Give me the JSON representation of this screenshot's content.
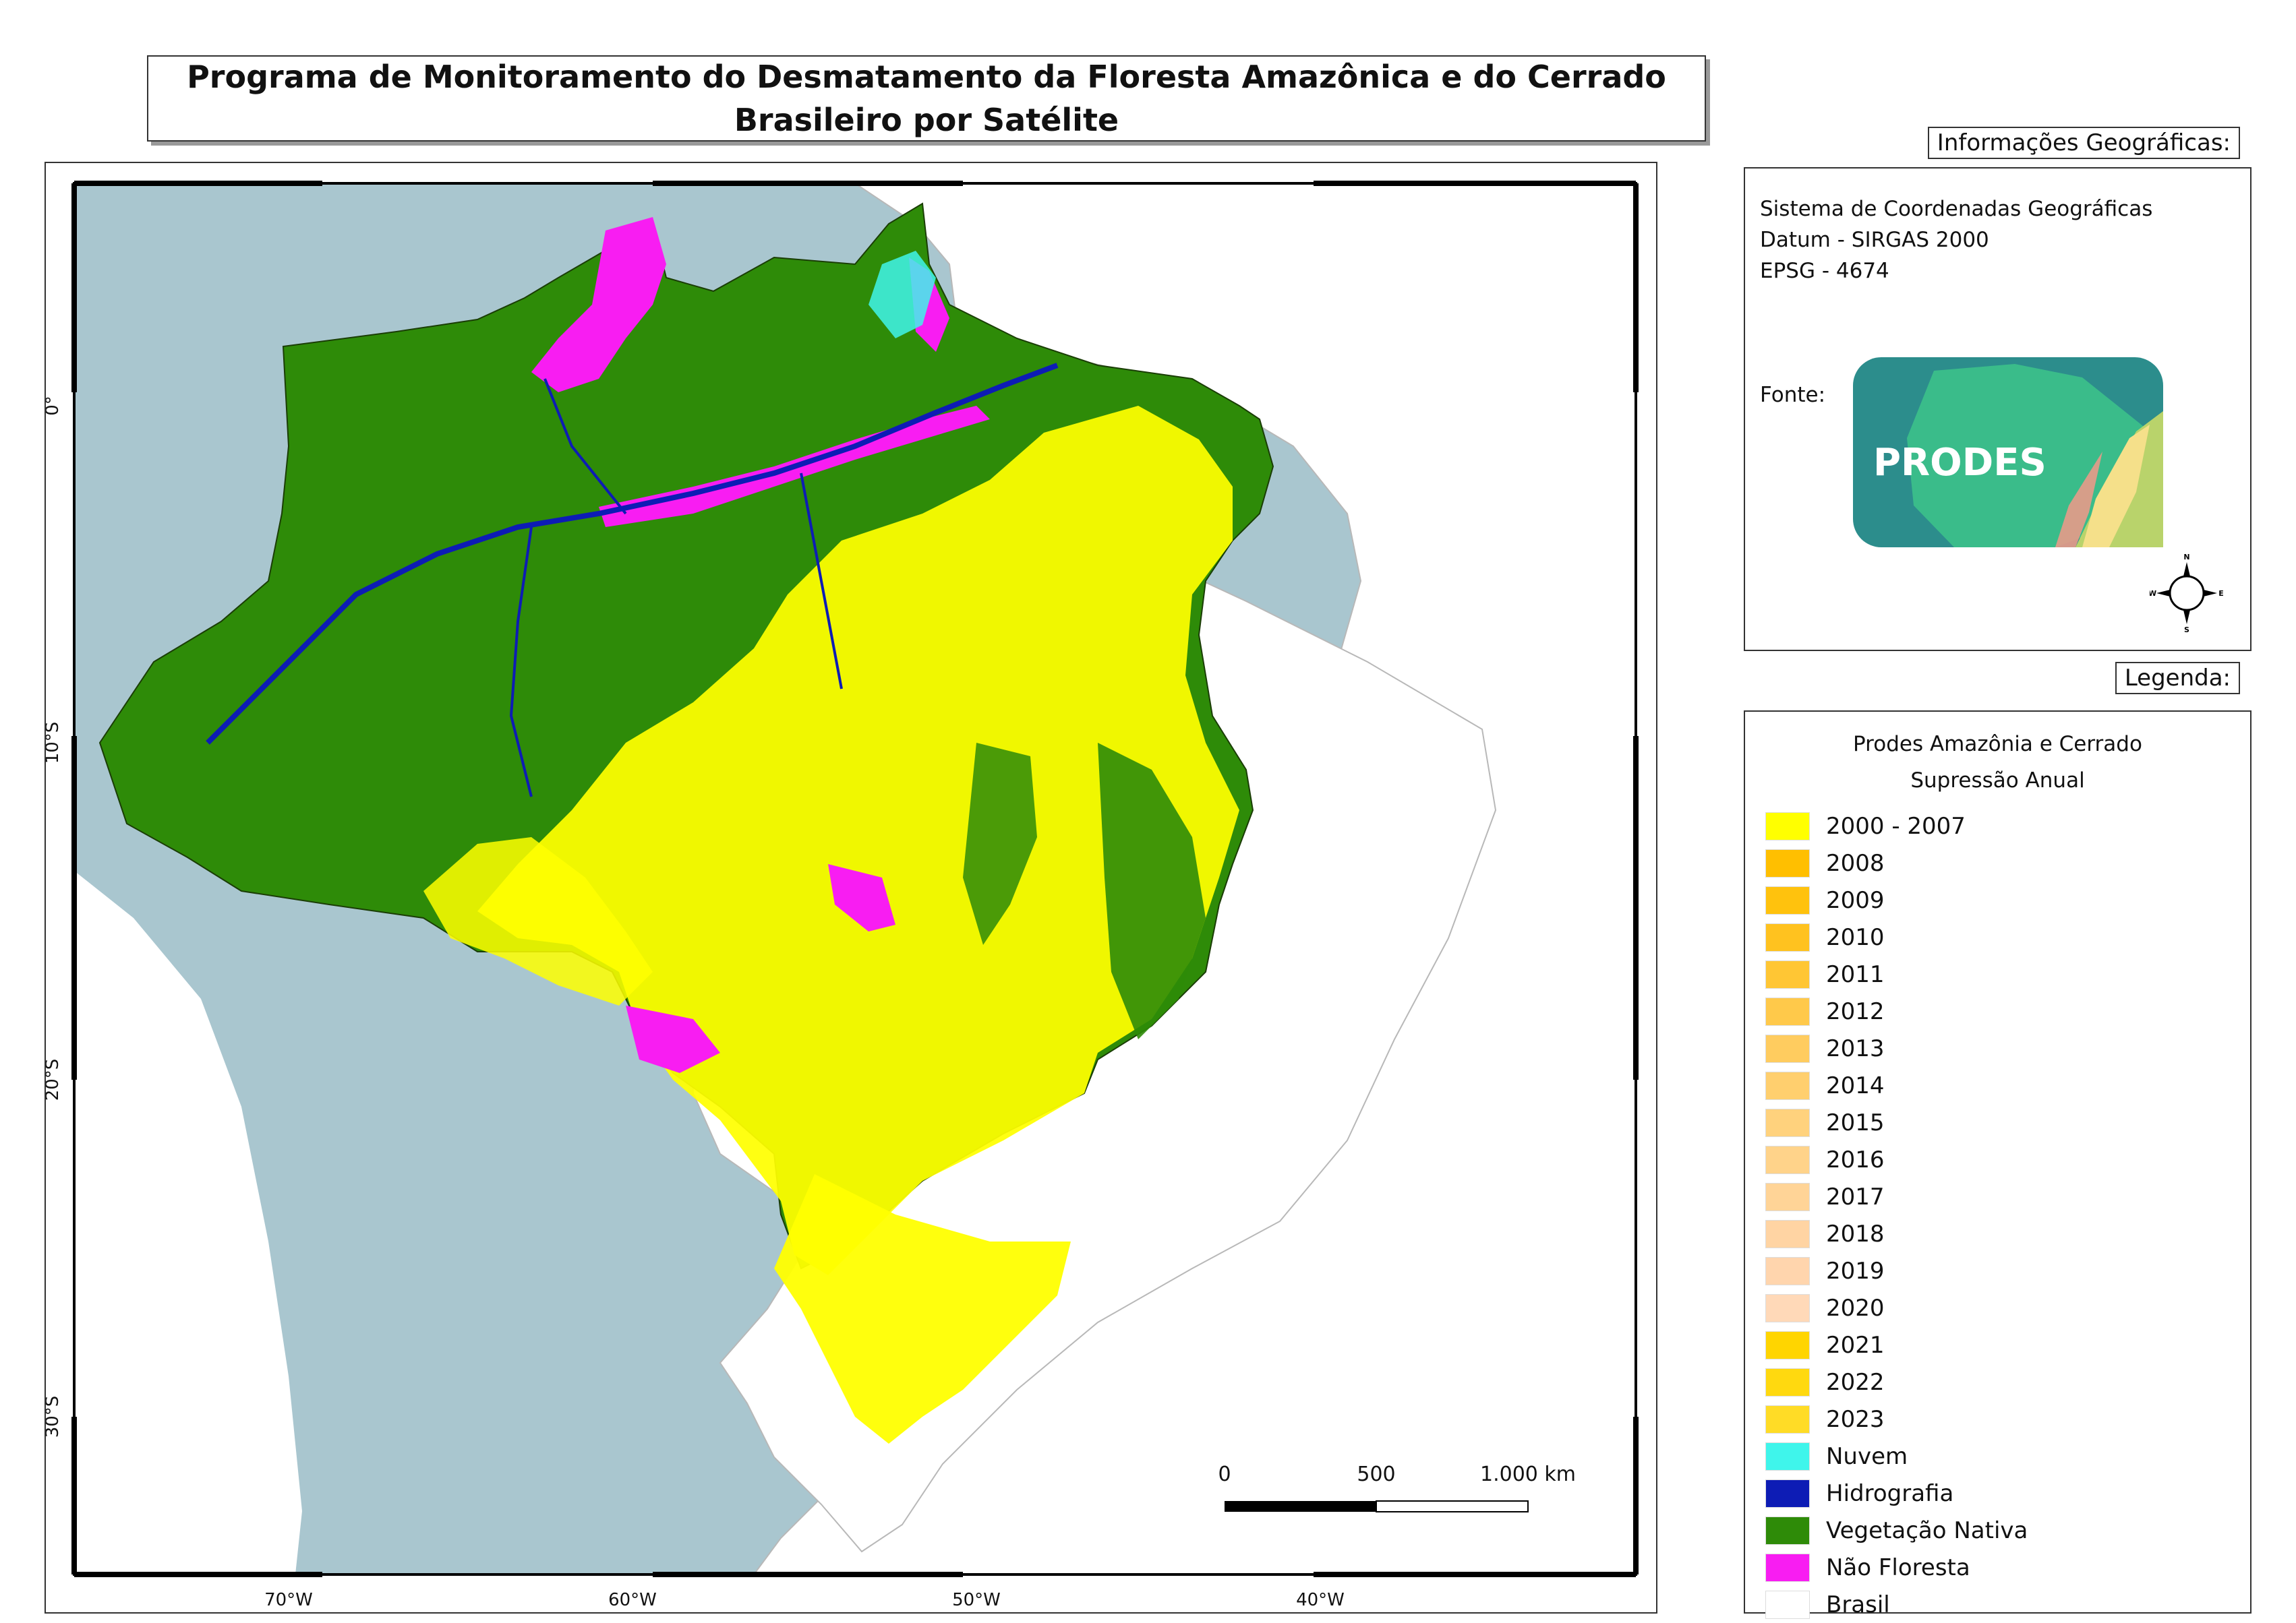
{
  "title": "Programa de Monitoramento do Desmatamento da Floresta Amazônica e do Cerrado Brasileiro por Satélite",
  "geo_info": {
    "tab_label": "Informações Geográficas:",
    "lines": [
      "Sistema de Coordenadas Geográficas",
      "Datum - SIRGAS 2000",
      "EPSG - 4674"
    ],
    "source_label": "Fonte:",
    "logo_text": "PRODES"
  },
  "north_arrow": {
    "n": "N",
    "s": "S",
    "e": "E",
    "w": "W"
  },
  "legend": {
    "tab_label": "Legenda:",
    "title": "Prodes Amazônia e Cerrado",
    "subtitle": "Supressão Anual",
    "items": [
      {
        "label": "2000 - 2007",
        "color": "#ffff00"
      },
      {
        "label": "2008",
        "color": "#ffbf00"
      },
      {
        "label": "2009",
        "color": "#ffc20d"
      },
      {
        "label": "2010",
        "color": "#ffc21f"
      },
      {
        "label": "2011",
        "color": "#ffc634"
      },
      {
        "label": "2012",
        "color": "#ffc94a"
      },
      {
        "label": "2013",
        "color": "#ffcc5f"
      },
      {
        "label": "2014",
        "color": "#ffcf6e"
      },
      {
        "label": "2015",
        "color": "#ffd27d"
      },
      {
        "label": "2016",
        "color": "#ffd38a"
      },
      {
        "label": "2017",
        "color": "#ffd497"
      },
      {
        "label": "2018",
        "color": "#ffd4a3"
      },
      {
        "label": "2019",
        "color": "#ffd5ad"
      },
      {
        "label": "2020",
        "color": "#ffd9b8"
      },
      {
        "label": "2021",
        "color": "#ffd500"
      },
      {
        "label": "2022",
        "color": "#ffd90f"
      },
      {
        "label": "2023",
        "color": "#ffdc26"
      },
      {
        "label": "Nuvem",
        "color": "#3ff5eb"
      },
      {
        "label": "Hidrografia",
        "color": "#0d1cb5"
      },
      {
        "label": "Vegetação Nativa",
        "color": "#2e8b08"
      },
      {
        "label": "Não Floresta",
        "color": "#f81df2"
      },
      {
        "label": "Brasil",
        "color": "#ffffff"
      }
    ]
  },
  "map": {
    "lat_labels": [
      "0°",
      "10°S",
      "20°S",
      "30°S"
    ],
    "lon_labels": [
      "70°W",
      "60°W",
      "50°W",
      "40°W"
    ],
    "scale_bar": {
      "labels": [
        "0",
        "500",
        "1.000 km"
      ]
    },
    "colors": {
      "ocean": "#ffffff",
      "south_america": "#a9c6cf",
      "brazil": "#ffffff",
      "forest": "#2e8b08",
      "deforest": "#ffff00",
      "nonforest": "#f81df2",
      "cloud": "#3ff5eb",
      "water": "#0d1cb5"
    }
  }
}
